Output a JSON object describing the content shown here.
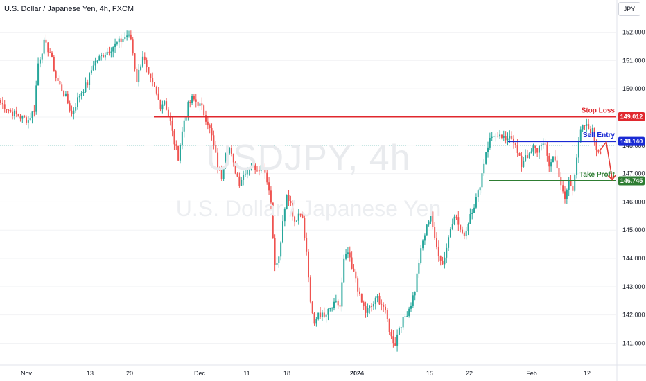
{
  "header": {
    "title": "U.S. Dollar / Japanese Yen, 4h, FXCM",
    "currency_button": "JPY"
  },
  "watermark": {
    "symbol": "USDJPY, 4h",
    "description": "U.S. Dollar / Japanese Yen"
  },
  "colors": {
    "up": "#26a69a",
    "down": "#ef5350",
    "stop_loss": "#e0282e",
    "sell_entry": "#1a2ad4",
    "take_profit": "#2e7d32",
    "arrow": "#e53935",
    "current_price_line": "#26a69a"
  },
  "chart_data": {
    "type": "candlestick",
    "symbol": "USDJPY",
    "timeframe": "4h",
    "ylim": [
      140.35,
      152.7
    ],
    "y_ticks": [
      141,
      142,
      143,
      144,
      145,
      146,
      147,
      148,
      149,
      150,
      151,
      152
    ],
    "y_tick_labels": [
      "141.000",
      "142.000",
      "143.000",
      "144.000",
      "145.000",
      "146.000",
      "147.000",
      "148.000",
      "149.000",
      "150.000",
      "151.000",
      "152.000"
    ],
    "x_tick_labels": [
      "Nov",
      "13",
      "20",
      "Dec",
      "11",
      "18",
      "2024",
      "15",
      "22",
      "Feb",
      "12"
    ],
    "price_path": [
      [
        0,
        149.5
      ],
      [
        5,
        149.2
      ],
      [
        10,
        149.0
      ],
      [
        14,
        148.9
      ],
      [
        17,
        149.3
      ],
      [
        19,
        150.9
      ],
      [
        22,
        151.6
      ],
      [
        25,
        151.3
      ],
      [
        28,
        150.4
      ],
      [
        33,
        149.7
      ],
      [
        36,
        149.1
      ],
      [
        40,
        149.8
      ],
      [
        44,
        150.2
      ],
      [
        47,
        150.9
      ],
      [
        52,
        151.2
      ],
      [
        57,
        151.5
      ],
      [
        61,
        151.7
      ],
      [
        64,
        151.9
      ],
      [
        66,
        151.75
      ],
      [
        69,
        150.3
      ],
      [
        72,
        151.2
      ],
      [
        75,
        150.4
      ],
      [
        78,
        150.0
      ],
      [
        81,
        149.4
      ],
      [
        83,
        149.6
      ],
      [
        86,
        148.8
      ],
      [
        88,
        148.1
      ],
      [
        90,
        147.6
      ],
      [
        93,
        148.9
      ],
      [
        95,
        149.4
      ],
      [
        97,
        149.65
      ],
      [
        100,
        149.5
      ],
      [
        102,
        149.3
      ],
      [
        105,
        148.8
      ],
      [
        107,
        148.3
      ],
      [
        110,
        147.3
      ],
      [
        112,
        146.9
      ],
      [
        114,
        147.8
      ],
      [
        116,
        147.9
      ],
      [
        118,
        147.3
      ],
      [
        121,
        146.7
      ],
      [
        124,
        147.1
      ],
      [
        127,
        147.3
      ],
      [
        130,
        147.2
      ],
      [
        133,
        147.3
      ],
      [
        135,
        146.8
      ],
      [
        137,
        146.0
      ],
      [
        139,
        143.7
      ],
      [
        141,
        144.0
      ],
      [
        143,
        145.2
      ],
      [
        145,
        146.2
      ],
      [
        147,
        146.0
      ],
      [
        149,
        145.2
      ],
      [
        151,
        145.7
      ],
      [
        153,
        145.5
      ],
      [
        155,
        144.2
      ],
      [
        157,
        142.5
      ],
      [
        159,
        141.6
      ],
      [
        161,
        142.1
      ],
      [
        164,
        141.9
      ],
      [
        167,
        142.2
      ],
      [
        170,
        142.4
      ],
      [
        172,
        142.3
      ],
      [
        174,
        143.9
      ],
      [
        176,
        144.2
      ],
      [
        178,
        143.6
      ],
      [
        180,
        143.3
      ],
      [
        182,
        142.6
      ],
      [
        185,
        142.1
      ],
      [
        188,
        142.3
      ],
      [
        191,
        142.6
      ],
      [
        194,
        142.3
      ],
      [
        196,
        141.8
      ],
      [
        198,
        141.2
      ],
      [
        200,
        141.0
      ],
      [
        202,
        141.6
      ],
      [
        204,
        141.8
      ],
      [
        206,
        142.1
      ],
      [
        208,
        142.4
      ],
      [
        210,
        142.9
      ],
      [
        212,
        143.9
      ],
      [
        214,
        144.6
      ],
      [
        216,
        145.1
      ],
      [
        218,
        145.7
      ],
      [
        220,
        144.6
      ],
      [
        222,
        144.2
      ],
      [
        224,
        143.8
      ],
      [
        226,
        144.4
      ],
      [
        228,
        145.1
      ],
      [
        230,
        145.6
      ],
      [
        232,
        145.2
      ],
      [
        234,
        144.8
      ],
      [
        236,
        145.0
      ],
      [
        238,
        145.6
      ],
      [
        240,
        145.9
      ],
      [
        242,
        146.3
      ],
      [
        244,
        147.0
      ],
      [
        246,
        147.8
      ],
      [
        248,
        148.2
      ],
      [
        250,
        148.4
      ],
      [
        252,
        148.2
      ],
      [
        254,
        148.3
      ],
      [
        256,
        148.1
      ],
      [
        258,
        148.45
      ],
      [
        260,
        148.2
      ],
      [
        262,
        147.7
      ],
      [
        264,
        147.3
      ],
      [
        266,
        147.7
      ],
      [
        268,
        147.6
      ],
      [
        270,
        147.9
      ],
      [
        272,
        147.8
      ],
      [
        274,
        148.1
      ],
      [
        276,
        147.9
      ],
      [
        278,
        147.3
      ],
      [
        280,
        147.6
      ],
      [
        282,
        147.3
      ],
      [
        284,
        146.5
      ],
      [
        286,
        146.1
      ],
      [
        288,
        146.7
      ],
      [
        290,
        146.5
      ],
      [
        292,
        147.6
      ],
      [
        294,
        148.5
      ],
      [
        296,
        148.7
      ],
      [
        298,
        148.6
      ],
      [
        300,
        148.5
      ],
      [
        302,
        147.9
      ],
      [
        304,
        147.8
      ]
    ],
    "levels": [
      {
        "name": "Stop Loss",
        "value": 149.012,
        "label": "149.012"
      },
      {
        "name": "Sell Entry",
        "value": 148.14,
        "label": "148.140"
      },
      {
        "name": "Take Profit",
        "value": 146.745,
        "label": "146.745"
      }
    ],
    "current_price": 148.0,
    "projection": [
      [
        304,
        147.85
      ],
      [
        307,
        148.12
      ],
      [
        310,
        146.78
      ]
    ]
  }
}
